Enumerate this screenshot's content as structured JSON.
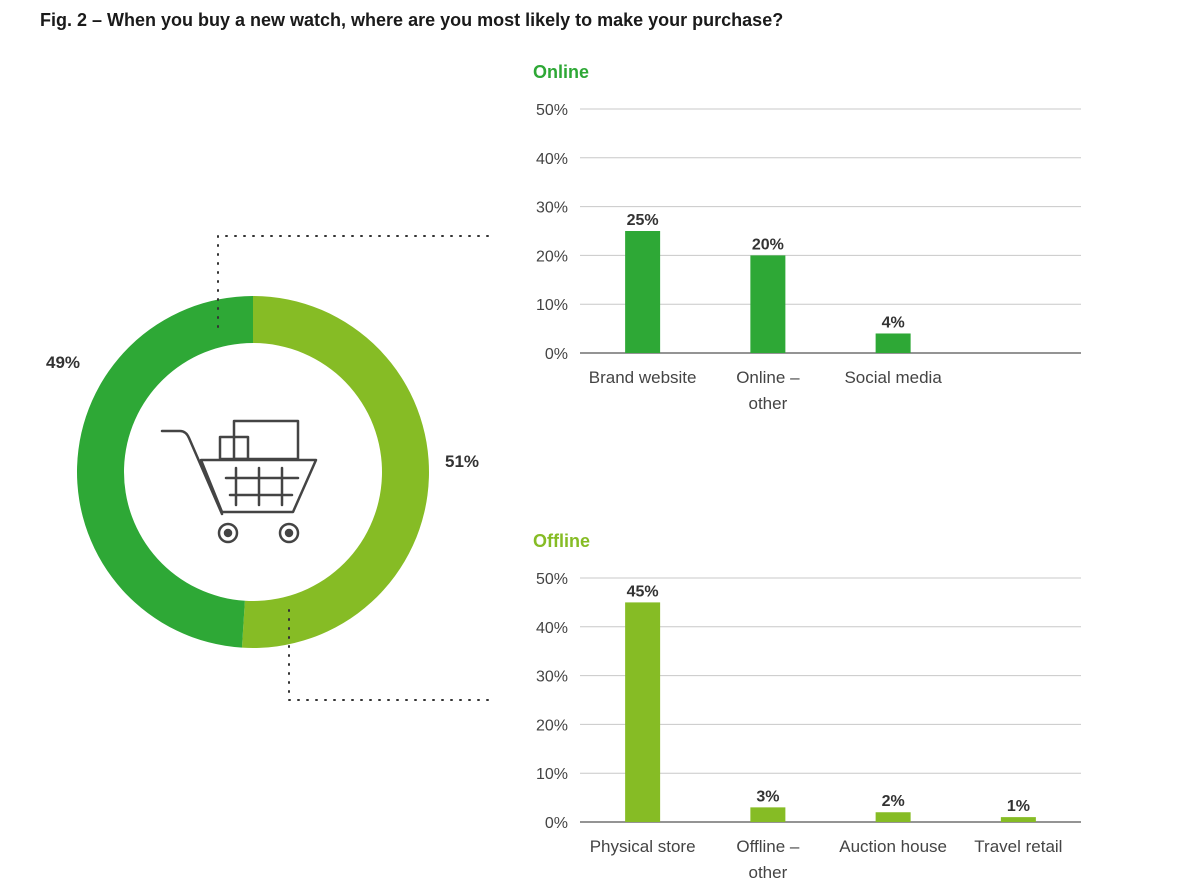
{
  "title": "Fig. 2 – When you buy a new watch, where are you most likely to make your purchase?",
  "colors": {
    "online": "#2ea836",
    "offline": "#86bc25",
    "grid": "#c8c8c8",
    "axis": "#555555",
    "icon": "#444444"
  },
  "icon": "shopping-cart-icon",
  "chart_data": [
    {
      "type": "pie",
      "subtype": "donut",
      "categories": [
        "Online",
        "Offline"
      ],
      "values": [
        49,
        51
      ],
      "labels": [
        "49%",
        "51%"
      ]
    },
    {
      "type": "bar",
      "title": "Online",
      "categories": [
        [
          "Brand website"
        ],
        [
          "Online –",
          "other"
        ],
        [
          "Social media"
        ],
        [
          ""
        ]
      ],
      "values": [
        25,
        20,
        4,
        null
      ],
      "value_labels": [
        "25%",
        "20%",
        "4%",
        ""
      ],
      "ylim": [
        0,
        50
      ],
      "yticks": [
        "0%",
        "10%",
        "20%",
        "30%",
        "40%",
        "50%"
      ],
      "grid": true
    },
    {
      "type": "bar",
      "title": "Offline",
      "categories": [
        [
          "Physical store"
        ],
        [
          "Offline –",
          "other"
        ],
        [
          "Auction house"
        ],
        [
          "Travel retail"
        ]
      ],
      "values": [
        45,
        3,
        2,
        1
      ],
      "value_labels": [
        "45%",
        "3%",
        "2%",
        "1%"
      ],
      "ylim": [
        0,
        50
      ],
      "yticks": [
        "0%",
        "10%",
        "20%",
        "30%",
        "40%",
        "50%"
      ],
      "grid": true
    }
  ]
}
